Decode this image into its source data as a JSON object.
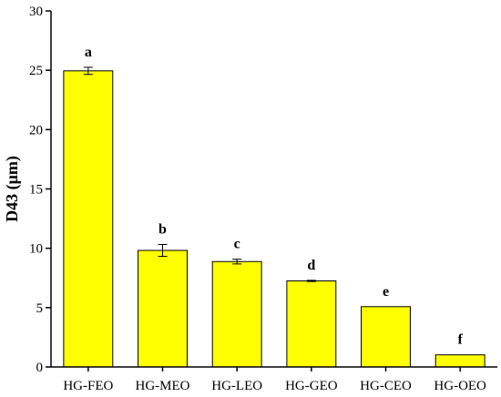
{
  "chart_data": {
    "type": "bar",
    "ylabel": "D43 (μm)",
    "xlabel": "",
    "ylim": [
      0,
      30
    ],
    "yticks": [
      0,
      5,
      10,
      15,
      20,
      25,
      30
    ],
    "categories": [
      "HG-FEO",
      "HG-MEO",
      "HG-LEO",
      "HG-GEO",
      "HG-CEO",
      "HG-OEO"
    ],
    "values": [
      24.95,
      9.82,
      8.88,
      7.25,
      5.08,
      1.02
    ],
    "errors": [
      0.3,
      0.5,
      0.2,
      0.05,
      0.0,
      0.0
    ],
    "significance": [
      "a",
      "b",
      "c",
      "d",
      "e",
      "f"
    ],
    "bar_color": "#ffff00",
    "grid": false
  }
}
